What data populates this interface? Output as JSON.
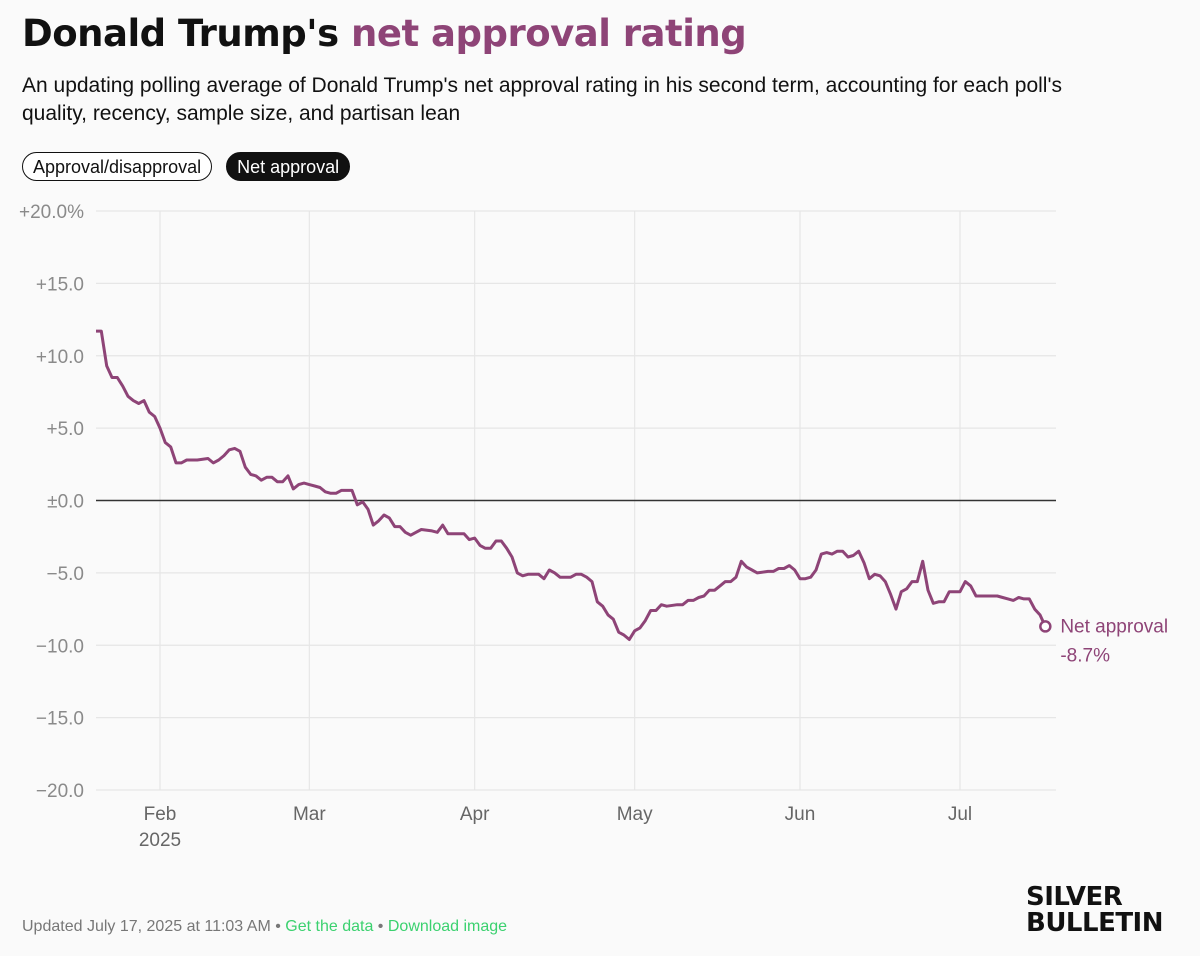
{
  "header": {
    "title_main": "Donald Trump's",
    "title_accent": "net approval rating",
    "subtitle": "An updating polling average of Donald Trump's net approval rating in his second term, accounting for each poll's quality, recency, sample size, and partisan lean"
  },
  "toggles": {
    "approval_label": "Approval/disapproval",
    "net_label": "Net approval"
  },
  "footer": {
    "updated": "Updated July 17, 2025 at 11:03 AM",
    "sep": "•",
    "get_data": "Get the data",
    "download": "Download image"
  },
  "logo": {
    "line1": "SILVER",
    "line2": "BULLETIN"
  },
  "colors": {
    "accent": "#8e4477",
    "grid": "#e6e6e6",
    "zero": "#333333",
    "tick": "#8a8a8a"
  },
  "chart_data": {
    "type": "line",
    "title": "Donald Trump's net approval rating",
    "ylim": [
      -20,
      20
    ],
    "xlim": [
      "2025-01-20",
      "2025-07-19"
    ],
    "y_ticks": [
      {
        "value": 20,
        "label": "+20.0%"
      },
      {
        "value": 15,
        "label": "+15.0"
      },
      {
        "value": 10,
        "label": "+10.0"
      },
      {
        "value": 5,
        "label": "+5.0"
      },
      {
        "value": 0,
        "label": "±0.0"
      },
      {
        "value": -5,
        "label": "−5.0"
      },
      {
        "value": -10,
        "label": "−10.0"
      },
      {
        "value": -15,
        "label": "−15.0"
      },
      {
        "value": -20,
        "label": "−20.0"
      }
    ],
    "x_ticks": [
      {
        "date": "2025-02-01",
        "label": "Feb",
        "sub": "2025"
      },
      {
        "date": "2025-03-01",
        "label": "Mar"
      },
      {
        "date": "2025-04-01",
        "label": "Apr"
      },
      {
        "date": "2025-05-01",
        "label": "May"
      },
      {
        "date": "2025-06-01",
        "label": "Jun"
      },
      {
        "date": "2025-07-01",
        "label": "Jul"
      }
    ],
    "series": [
      {
        "name": "Net approval",
        "end_label": "-8.7%",
        "points": [
          [
            "2025-01-20",
            11.7
          ],
          [
            "2025-01-21",
            11.7
          ],
          [
            "2025-01-22",
            9.3
          ],
          [
            "2025-01-23",
            8.5
          ],
          [
            "2025-01-24",
            8.5
          ],
          [
            "2025-01-25",
            7.9
          ],
          [
            "2025-01-26",
            7.2
          ],
          [
            "2025-01-27",
            6.9
          ],
          [
            "2025-01-28",
            6.7
          ],
          [
            "2025-01-29",
            6.9
          ],
          [
            "2025-01-30",
            6.1
          ],
          [
            "2025-01-31",
            5.8
          ],
          [
            "2025-02-01",
            5.0
          ],
          [
            "2025-02-02",
            4.0
          ],
          [
            "2025-02-03",
            3.7
          ],
          [
            "2025-02-04",
            2.6
          ],
          [
            "2025-02-05",
            2.6
          ],
          [
            "2025-02-06",
            2.8
          ],
          [
            "2025-02-08",
            2.8
          ],
          [
            "2025-02-10",
            2.9
          ],
          [
            "2025-02-11",
            2.6
          ],
          [
            "2025-02-12",
            2.8
          ],
          [
            "2025-02-13",
            3.1
          ],
          [
            "2025-02-14",
            3.5
          ],
          [
            "2025-02-15",
            3.6
          ],
          [
            "2025-02-16",
            3.4
          ],
          [
            "2025-02-17",
            2.3
          ],
          [
            "2025-02-18",
            1.8
          ],
          [
            "2025-02-19",
            1.7
          ],
          [
            "2025-02-20",
            1.4
          ],
          [
            "2025-02-21",
            1.6
          ],
          [
            "2025-02-22",
            1.6
          ],
          [
            "2025-02-23",
            1.3
          ],
          [
            "2025-02-24",
            1.3
          ],
          [
            "2025-02-25",
            1.7
          ],
          [
            "2025-02-26",
            0.8
          ],
          [
            "2025-02-27",
            1.1
          ],
          [
            "2025-02-28",
            1.2
          ],
          [
            "2025-03-01",
            1.1
          ],
          [
            "2025-03-02",
            1.0
          ],
          [
            "2025-03-03",
            0.9
          ],
          [
            "2025-03-04",
            0.6
          ],
          [
            "2025-03-05",
            0.5
          ],
          [
            "2025-03-06",
            0.5
          ],
          [
            "2025-03-07",
            0.7
          ],
          [
            "2025-03-08",
            0.7
          ],
          [
            "2025-03-09",
            0.7
          ],
          [
            "2025-03-10",
            -0.3
          ],
          [
            "2025-03-11",
            -0.1
          ],
          [
            "2025-03-12",
            -0.6
          ],
          [
            "2025-03-13",
            -1.7
          ],
          [
            "2025-03-14",
            -1.4
          ],
          [
            "2025-03-15",
            -1.0
          ],
          [
            "2025-03-16",
            -1.2
          ],
          [
            "2025-03-17",
            -1.8
          ],
          [
            "2025-03-18",
            -1.8
          ],
          [
            "2025-03-19",
            -2.2
          ],
          [
            "2025-03-20",
            -2.4
          ],
          [
            "2025-03-21",
            -2.2
          ],
          [
            "2025-03-22",
            -2.0
          ],
          [
            "2025-03-24",
            -2.1
          ],
          [
            "2025-03-25",
            -2.2
          ],
          [
            "2025-03-26",
            -1.7
          ],
          [
            "2025-03-27",
            -2.3
          ],
          [
            "2025-03-28",
            -2.3
          ],
          [
            "2025-03-29",
            -2.3
          ],
          [
            "2025-03-30",
            -2.3
          ],
          [
            "2025-03-31",
            -2.7
          ],
          [
            "2025-04-01",
            -2.6
          ],
          [
            "2025-04-02",
            -3.1
          ],
          [
            "2025-04-03",
            -3.3
          ],
          [
            "2025-04-04",
            -3.3
          ],
          [
            "2025-04-05",
            -2.8
          ],
          [
            "2025-04-06",
            -2.8
          ],
          [
            "2025-04-07",
            -3.3
          ],
          [
            "2025-04-08",
            -3.9
          ],
          [
            "2025-04-09",
            -5.0
          ],
          [
            "2025-04-10",
            -5.2
          ],
          [
            "2025-04-11",
            -5.1
          ],
          [
            "2025-04-13",
            -5.1
          ],
          [
            "2025-04-14",
            -5.4
          ],
          [
            "2025-04-15",
            -4.8
          ],
          [
            "2025-04-16",
            -5.0
          ],
          [
            "2025-04-17",
            -5.3
          ],
          [
            "2025-04-18",
            -5.3
          ],
          [
            "2025-04-19",
            -5.3
          ],
          [
            "2025-04-20",
            -5.1
          ],
          [
            "2025-04-21",
            -5.1
          ],
          [
            "2025-04-22",
            -5.3
          ],
          [
            "2025-04-23",
            -5.6
          ],
          [
            "2025-04-24",
            -7.0
          ],
          [
            "2025-04-25",
            -7.3
          ],
          [
            "2025-04-26",
            -7.9
          ],
          [
            "2025-04-27",
            -8.2
          ],
          [
            "2025-04-28",
            -9.1
          ],
          [
            "2025-04-29",
            -9.3
          ],
          [
            "2025-04-30",
            -9.6
          ],
          [
            "2025-05-01",
            -9.0
          ],
          [
            "2025-05-02",
            -8.8
          ],
          [
            "2025-05-03",
            -8.3
          ],
          [
            "2025-05-04",
            -7.6
          ],
          [
            "2025-05-05",
            -7.6
          ],
          [
            "2025-05-06",
            -7.2
          ],
          [
            "2025-05-07",
            -7.3
          ],
          [
            "2025-05-09",
            -7.2
          ],
          [
            "2025-05-10",
            -7.2
          ],
          [
            "2025-05-11",
            -6.9
          ],
          [
            "2025-05-12",
            -6.9
          ],
          [
            "2025-05-13",
            -6.7
          ],
          [
            "2025-05-14",
            -6.6
          ],
          [
            "2025-05-15",
            -6.2
          ],
          [
            "2025-05-16",
            -6.2
          ],
          [
            "2025-05-17",
            -5.9
          ],
          [
            "2025-05-18",
            -5.6
          ],
          [
            "2025-05-19",
            -5.6
          ],
          [
            "2025-05-20",
            -5.3
          ],
          [
            "2025-05-21",
            -4.2
          ],
          [
            "2025-05-22",
            -4.6
          ],
          [
            "2025-05-23",
            -4.8
          ],
          [
            "2025-05-24",
            -5.0
          ],
          [
            "2025-05-26",
            -4.9
          ],
          [
            "2025-05-27",
            -4.9
          ],
          [
            "2025-05-28",
            -4.7
          ],
          [
            "2025-05-29",
            -4.7
          ],
          [
            "2025-05-30",
            -4.5
          ],
          [
            "2025-05-31",
            -4.8
          ],
          [
            "2025-06-01",
            -5.4
          ],
          [
            "2025-06-02",
            -5.4
          ],
          [
            "2025-06-03",
            -5.3
          ],
          [
            "2025-06-04",
            -4.8
          ],
          [
            "2025-06-05",
            -3.7
          ],
          [
            "2025-06-06",
            -3.6
          ],
          [
            "2025-06-07",
            -3.7
          ],
          [
            "2025-06-08",
            -3.5
          ],
          [
            "2025-06-09",
            -3.5
          ],
          [
            "2025-06-10",
            -3.9
          ],
          [
            "2025-06-11",
            -3.8
          ],
          [
            "2025-06-12",
            -3.5
          ],
          [
            "2025-06-13",
            -4.3
          ],
          [
            "2025-06-14",
            -5.4
          ],
          [
            "2025-06-15",
            -5.1
          ],
          [
            "2025-06-16",
            -5.2
          ],
          [
            "2025-06-17",
            -5.6
          ],
          [
            "2025-06-18",
            -6.5
          ],
          [
            "2025-06-19",
            -7.5
          ],
          [
            "2025-06-20",
            -6.3
          ],
          [
            "2025-06-21",
            -6.1
          ],
          [
            "2025-06-22",
            -5.6
          ],
          [
            "2025-06-23",
            -5.6
          ],
          [
            "2025-06-24",
            -4.2
          ],
          [
            "2025-06-25",
            -6.2
          ],
          [
            "2025-06-26",
            -7.1
          ],
          [
            "2025-06-27",
            -7.0
          ],
          [
            "2025-06-28",
            -7.0
          ],
          [
            "2025-06-29",
            -6.3
          ],
          [
            "2025-06-30",
            -6.3
          ],
          [
            "2025-07-01",
            -6.3
          ],
          [
            "2025-07-02",
            -5.6
          ],
          [
            "2025-07-03",
            -5.9
          ],
          [
            "2025-07-04",
            -6.6
          ],
          [
            "2025-07-05",
            -6.6
          ],
          [
            "2025-07-06",
            -6.6
          ],
          [
            "2025-07-08",
            -6.6
          ],
          [
            "2025-07-09",
            -6.7
          ],
          [
            "2025-07-10",
            -6.8
          ],
          [
            "2025-07-11",
            -6.9
          ],
          [
            "2025-07-12",
            -6.7
          ],
          [
            "2025-07-13",
            -6.8
          ],
          [
            "2025-07-14",
            -6.8
          ],
          [
            "2025-07-15",
            -7.5
          ],
          [
            "2025-07-16",
            -7.9
          ],
          [
            "2025-07-17",
            -8.7
          ]
        ]
      }
    ]
  }
}
